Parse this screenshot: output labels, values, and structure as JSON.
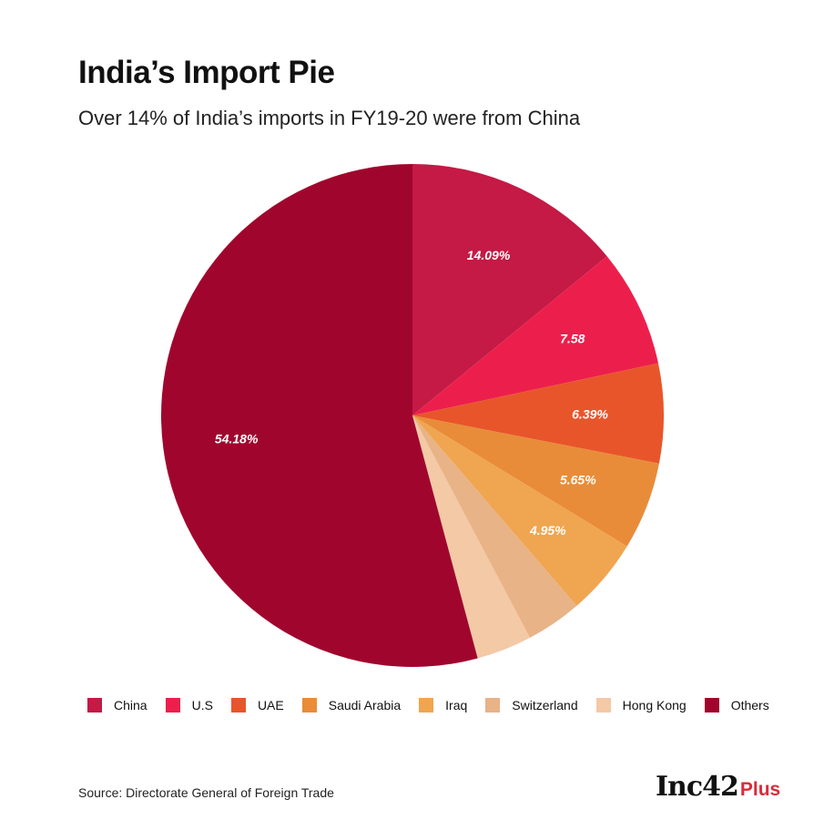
{
  "header": {
    "title": "India’s Import Pie",
    "subtitle": "Over 14% of India’s imports in FY19-20 were from China"
  },
  "chart_data": {
    "type": "pie",
    "start_angle_deg": 0,
    "direction": "clockwise",
    "slices": [
      {
        "name": "China",
        "value": 14.09,
        "label": "14.09%",
        "color": "#c41a45"
      },
      {
        "name": "U.S",
        "value": 7.58,
        "label": "7.58",
        "color": "#ec1f4c"
      },
      {
        "name": "UAE",
        "value": 6.39,
        "label": "6.39%",
        "color": "#e8552b"
      },
      {
        "name": "Saudi Arabia",
        "value": 5.65,
        "label": "5.65%",
        "color": "#e88c39"
      },
      {
        "name": "Iraq",
        "value": 4.95,
        "label": "4.95%",
        "color": "#f0a550"
      },
      {
        "name": "Switzerland",
        "value": 3.6,
        "label": "",
        "color": "#e8b386"
      },
      {
        "name": "Hong Kong",
        "value": 3.56,
        "label": "",
        "color": "#f3c9a6"
      },
      {
        "name": "Others",
        "value": 54.18,
        "label": "54.18%",
        "color": "#a0062d"
      }
    ],
    "legend_position": "bottom"
  },
  "footer": {
    "source": "Source: Directorate General of Foreign Trade",
    "logo_main": "Inc42",
    "logo_plus": "Plus"
  }
}
